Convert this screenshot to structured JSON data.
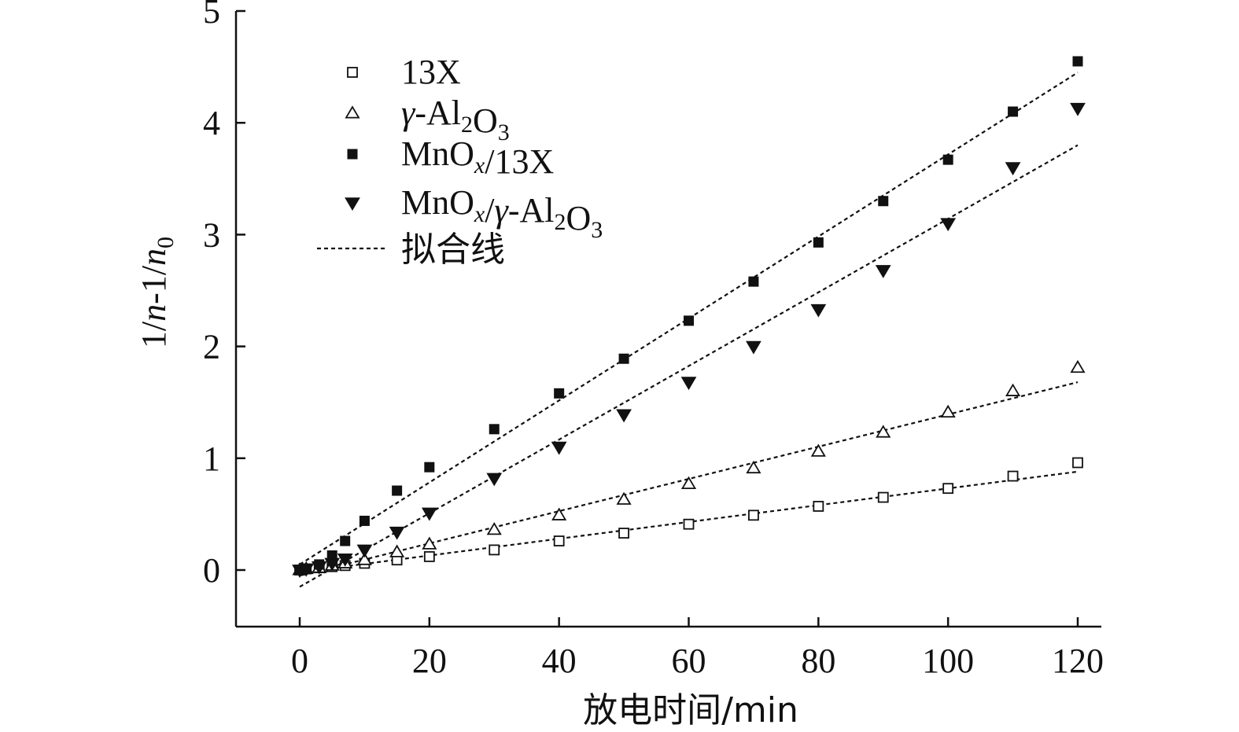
{
  "chart_data": {
    "type": "scatter",
    "xlabel": "放电时间/min",
    "ylabel": {
      "p1": "1/",
      "n1": "n",
      "p2": "-1/",
      "n2": "n",
      "sub": "0"
    },
    "xlim": [
      -10,
      120
    ],
    "ylim": [
      -0.5,
      5
    ],
    "xticks": [
      0,
      20,
      40,
      60,
      80,
      100,
      120
    ],
    "yticks": [
      0,
      1,
      2,
      3,
      4,
      5
    ],
    "grid": false,
    "legend_position": "top-left",
    "fit_label": "拟合线",
    "series": [
      {
        "key": "13x",
        "marker": "square-open",
        "label_parts": [
          {
            "t": "13X"
          }
        ],
        "x": [
          0,
          1,
          3,
          5,
          7,
          10,
          15,
          20,
          30,
          40,
          50,
          60,
          70,
          80,
          90,
          100,
          110,
          120
        ],
        "y": [
          0,
          0.01,
          0.02,
          0.03,
          0.04,
          0.06,
          0.09,
          0.12,
          0.18,
          0.26,
          0.33,
          0.41,
          0.49,
          0.57,
          0.65,
          0.73,
          0.84,
          0.96
        ],
        "fit": {
          "x0": 0,
          "y0": -0.02,
          "x1": 120,
          "y1": 0.88
        }
      },
      {
        "key": "al2o3",
        "marker": "triangle-open",
        "label_parts": [
          {
            "t": "γ",
            "italic": true
          },
          {
            "t": "-Al"
          },
          {
            "t": "2",
            "sub": true
          },
          {
            "t": "O"
          },
          {
            "t": "3",
            "sub": true
          }
        ],
        "x": [
          0,
          1,
          3,
          5,
          7,
          10,
          15,
          20,
          30,
          40,
          50,
          60,
          70,
          80,
          90,
          100,
          110,
          120
        ],
        "y": [
          0,
          0.01,
          0.02,
          0.04,
          0.06,
          0.09,
          0.16,
          0.23,
          0.36,
          0.49,
          0.63,
          0.77,
          0.91,
          1.06,
          1.23,
          1.41,
          1.6,
          1.81
        ],
        "fit": {
          "x0": 0,
          "y0": -0.05,
          "x1": 120,
          "y1": 1.68
        }
      },
      {
        "key": "mnox-13x",
        "marker": "square-filled",
        "label_parts": [
          {
            "t": "MnO"
          },
          {
            "t": "x",
            "sub": true,
            "italic": true
          },
          {
            "t": "/13X"
          }
        ],
        "x": [
          0,
          1,
          3,
          5,
          7,
          10,
          15,
          20,
          30,
          40,
          50,
          60,
          70,
          80,
          90,
          100,
          110,
          120
        ],
        "y": [
          0,
          0.01,
          0.05,
          0.13,
          0.26,
          0.44,
          0.71,
          0.92,
          1.26,
          1.58,
          1.89,
          2.23,
          2.58,
          2.93,
          3.3,
          3.67,
          4.1,
          4.55
        ],
        "fit": {
          "x0": 0,
          "y0": 0.05,
          "x1": 120,
          "y1": 4.45
        }
      },
      {
        "key": "mnox-al2o3",
        "marker": "triangle-down-filled",
        "label_parts": [
          {
            "t": "MnO"
          },
          {
            "t": "x",
            "sub": true,
            "italic": true
          },
          {
            "t": "/"
          },
          {
            "t": "γ",
            "italic": true
          },
          {
            "t": "-Al"
          },
          {
            "t": "2",
            "sub": true
          },
          {
            "t": "O"
          },
          {
            "t": "3",
            "sub": true
          }
        ],
        "x": [
          0,
          1,
          3,
          5,
          7,
          10,
          15,
          20,
          30,
          40,
          50,
          60,
          70,
          80,
          90,
          100,
          110,
          120
        ],
        "y": [
          0,
          0.01,
          0.03,
          0.06,
          0.1,
          0.18,
          0.34,
          0.51,
          0.82,
          1.1,
          1.39,
          1.68,
          2.0,
          2.33,
          2.68,
          3.1,
          3.6,
          4.13
        ],
        "fit": {
          "x0": 0,
          "y0": -0.15,
          "x1": 120,
          "y1": 3.8
        }
      }
    ]
  }
}
